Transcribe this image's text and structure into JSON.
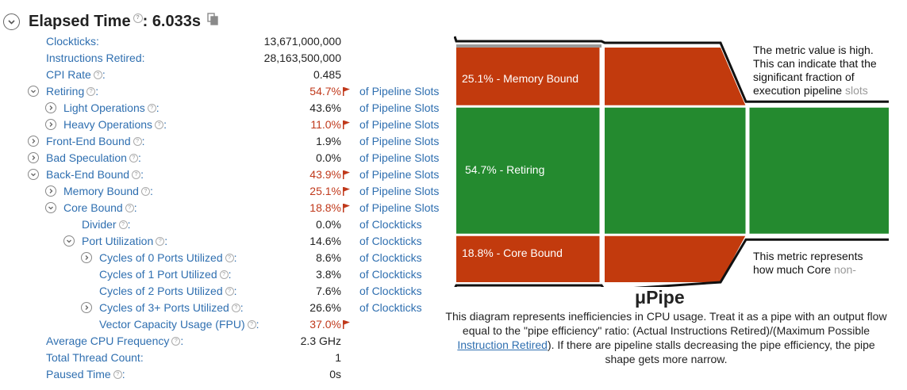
{
  "header": {
    "title": "Elapsed Time",
    "separator": ":",
    "value": "6.033s"
  },
  "metrics": [
    {
      "label": "Clockticks",
      "value": "13,671,000,000",
      "unit": "",
      "level": 0,
      "toggle": "none",
      "help": false,
      "flag": false
    },
    {
      "label": "Instructions Retired",
      "value": "28,163,500,000",
      "unit": "",
      "level": 0,
      "toggle": "none",
      "help": false,
      "flag": false
    },
    {
      "label": "CPI Rate",
      "value": "0.485",
      "unit": "",
      "level": 0,
      "toggle": "none",
      "help": true,
      "flag": false
    },
    {
      "label": "Retiring",
      "value": "54.7%",
      "unit": "of Pipeline Slots",
      "level": 0,
      "toggle": "expanded",
      "help": true,
      "flag": true
    },
    {
      "label": "Light Operations",
      "value": "43.6%",
      "unit": "of Pipeline Slots",
      "level": 1,
      "toggle": "collapsed",
      "help": true,
      "flag": false
    },
    {
      "label": "Heavy Operations",
      "value": "11.0%",
      "unit": "of Pipeline Slots",
      "level": 1,
      "toggle": "collapsed",
      "help": true,
      "flag": true
    },
    {
      "label": "Front-End Bound",
      "value": "1.9%",
      "unit": "of Pipeline Slots",
      "level": 0,
      "toggle": "collapsed",
      "help": true,
      "flag": false
    },
    {
      "label": "Bad Speculation",
      "value": "0.0%",
      "unit": "of Pipeline Slots",
      "level": 0,
      "toggle": "collapsed",
      "help": true,
      "flag": false
    },
    {
      "label": "Back-End Bound",
      "value": "43.9%",
      "unit": "of Pipeline Slots",
      "level": 0,
      "toggle": "expanded",
      "help": true,
      "flag": true
    },
    {
      "label": "Memory Bound",
      "value": "25.1%",
      "unit": "of Pipeline Slots",
      "level": 1,
      "toggle": "collapsed",
      "help": true,
      "flag": true
    },
    {
      "label": "Core Bound",
      "value": "18.8%",
      "unit": "of Pipeline Slots",
      "level": 1,
      "toggle": "expanded",
      "help": true,
      "flag": true
    },
    {
      "label": "Divider",
      "value": "0.0%",
      "unit": "of Clockticks",
      "level": 2,
      "toggle": "none",
      "help": true,
      "flag": false
    },
    {
      "label": "Port Utilization",
      "value": "14.6%",
      "unit": "of Clockticks",
      "level": 2,
      "toggle": "expanded",
      "help": true,
      "flag": false
    },
    {
      "label": "Cycles of 0 Ports Utilized",
      "value": "8.6%",
      "unit": "of Clockticks",
      "level": 3,
      "toggle": "collapsed",
      "help": true,
      "flag": false
    },
    {
      "label": "Cycles of 1 Port Utilized",
      "value": "3.8%",
      "unit": "of Clockticks",
      "level": 3,
      "toggle": "none",
      "help": true,
      "flag": false
    },
    {
      "label": "Cycles of 2 Ports Utilized",
      "value": "7.6%",
      "unit": "of Clockticks",
      "level": 3,
      "toggle": "none",
      "help": true,
      "flag": false
    },
    {
      "label": "Cycles of 3+ Ports Utilized",
      "value": "26.6%",
      "unit": "of Clockticks",
      "level": 3,
      "toggle": "collapsed",
      "help": true,
      "flag": false
    },
    {
      "label": "Vector Capacity Usage (FPU)",
      "value": "37.0%",
      "unit": "",
      "level": 3,
      "toggle": "none",
      "help": true,
      "flag": true
    },
    {
      "label": "Average CPU Frequency",
      "value": "2.3 GHz",
      "unit": "",
      "level": 0,
      "toggle": "none",
      "help": true,
      "flag": false
    },
    {
      "label": "Total Thread Count",
      "value": "1",
      "unit": "",
      "level": 0,
      "toggle": "none",
      "help": false,
      "flag": false
    },
    {
      "label": "Paused Time",
      "value": "0s",
      "unit": "",
      "level": 0,
      "toggle": "none",
      "help": true,
      "flag": false
    }
  ],
  "pipe": {
    "memory_label": "25.1% - Memory Bound",
    "retiring_label": "54.7% - Retiring",
    "core_label": "18.8% - Core Bound",
    "memory_fraction": 0.251,
    "retiring_fraction": 0.547,
    "core_fraction": 0.188,
    "colors": {
      "bound": "#c23a0d",
      "retiring": "#248a2f",
      "separator": "#ffffff",
      "outline": "#111111",
      "frontend": "#9a9a9a"
    },
    "callout_top": [
      "The metric value is high.",
      "This can indicate that the",
      "significant fraction of"
    ],
    "callout_top_cut_a": "execution pipeline ",
    "callout_top_cut_b": "slots",
    "callout_bottom": [
      "This metric represents"
    ],
    "callout_bottom_cut_a": "how much Core ",
    "callout_bottom_cut_b": "non-",
    "title": "μPipe",
    "description_part1": "This diagram represents inefficiencies in CPU usage. Treat it as a pipe with an output flow equal to the \"pipe efficiency\" ratio: (Actual Instructions Retired)/(Maximum Possible ",
    "description_link": "Instruction Retired",
    "description_part2": "). If there are pipeline stalls decreasing the pipe efficiency, the pipe shape gets more narrow."
  }
}
